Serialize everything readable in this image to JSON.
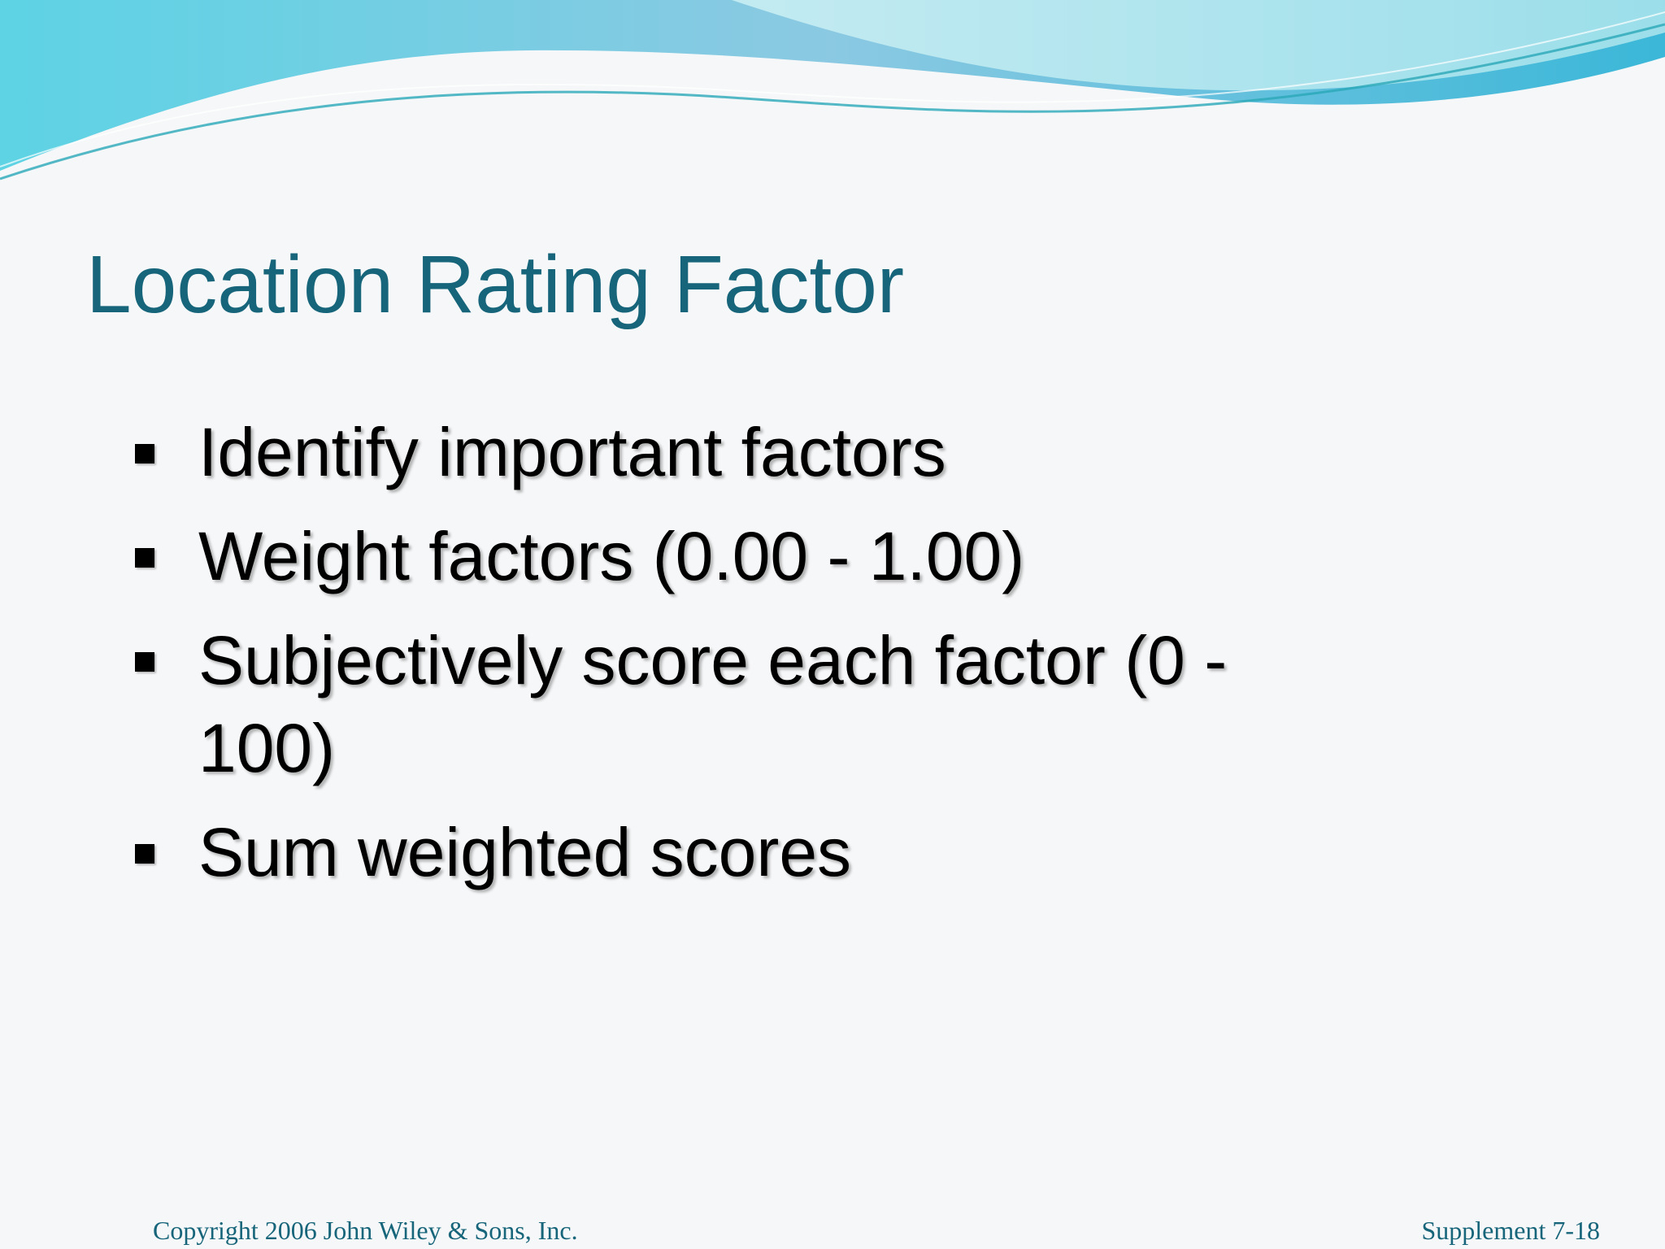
{
  "slide": {
    "title": "Location Rating Factor",
    "bullets": [
      "Identify important factors",
      "Weight factors (0.00 - 1.00)",
      "Subjectively score each factor (0 - 100)",
      "Sum weighted scores"
    ],
    "footer": {
      "copyright": "Copyright 2006 John Wiley & Sons, Inc.",
      "slide_number": "Supplement 7-18"
    }
  },
  "colors": {
    "title": "#17657a",
    "wave_light": "#a8e2ec",
    "wave_dark": "#3fc0dc",
    "background": "#f6f7f8"
  },
  "icons": {
    "bullet": "square-bullet-icon"
  }
}
